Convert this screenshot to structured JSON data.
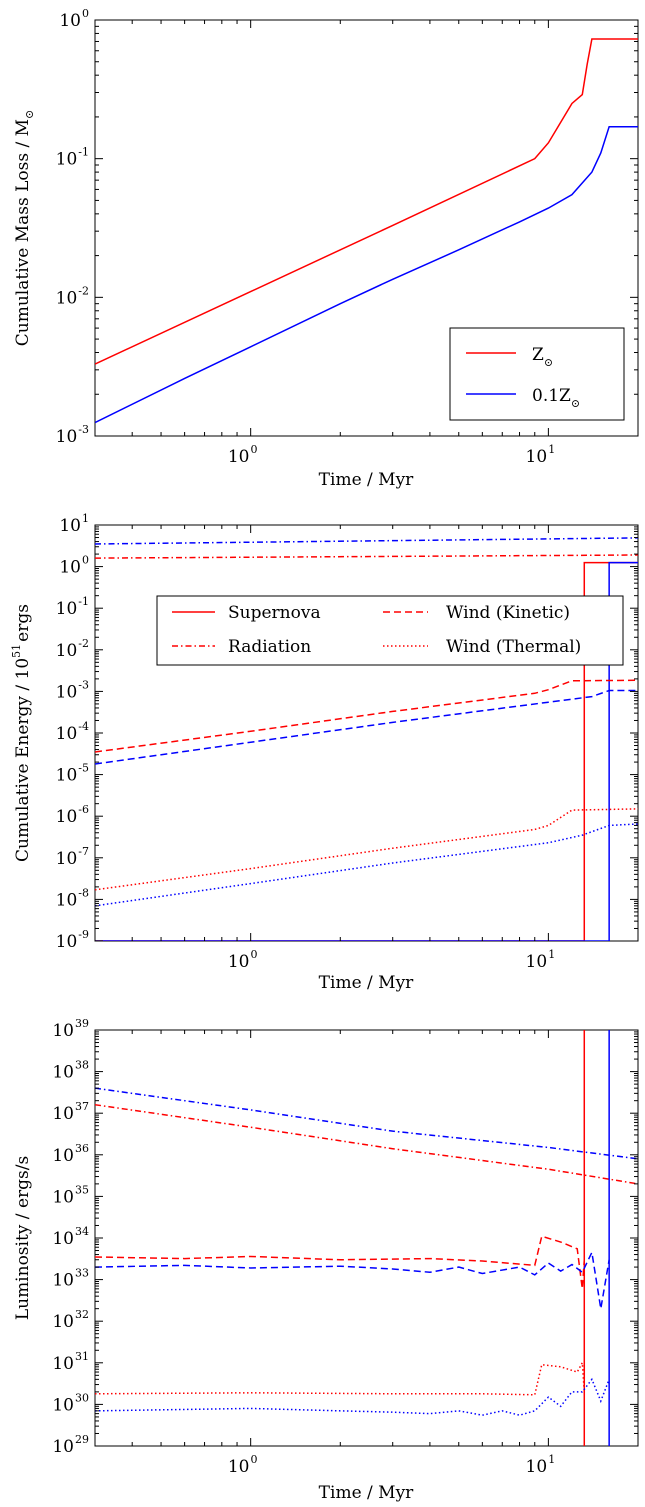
{
  "chart_data": [
    {
      "type": "line",
      "xlabel": "Time / Myr",
      "ylabel_text": "Cumulative Mass Loss / M",
      "ylabel_symbol": "⊙",
      "xscale": "log",
      "yscale": "log",
      "xlim": [
        0.3,
        20
      ],
      "ylim": [
        0.001,
        1
      ],
      "xticks": [
        {
          "base": "10",
          "exp": "0",
          "value": 1
        },
        {
          "base": "10",
          "exp": "1",
          "value": 10
        }
      ],
      "yticks": [
        {
          "base": "10",
          "exp": "-3",
          "value": 0.001
        },
        {
          "base": "10",
          "exp": "-2",
          "value": 0.01
        },
        {
          "base": "10",
          "exp": "-1",
          "value": 0.1
        },
        {
          "base": "10",
          "exp": "0",
          "value": 1
        }
      ],
      "legend": {
        "placement": "lower-right"
      },
      "series": [
        {
          "name": "Z",
          "name_sub": "⊙",
          "color": "#ff0000",
          "style": "solid",
          "points": [
            [
              0.3,
              0.0033
            ],
            [
              1,
              0.011
            ],
            [
              3,
              0.033
            ],
            [
              9,
              0.1
            ],
            [
              10,
              0.13
            ],
            [
              12,
              0.25
            ],
            [
              13,
              0.29
            ],
            [
              13.5,
              0.48
            ],
            [
              14,
              0.73
            ],
            [
              20,
              0.73
            ]
          ]
        },
        {
          "name": "0.1Z",
          "name_sub": "⊙",
          "color": "#0000ff",
          "style": "solid",
          "points": [
            [
              0.3,
              0.00125
            ],
            [
              0.6,
              0.0026
            ],
            [
              1,
              0.0044
            ],
            [
              2,
              0.009
            ],
            [
              3,
              0.0135
            ],
            [
              5,
              0.022
            ],
            [
              8,
              0.035
            ],
            [
              10,
              0.044
            ],
            [
              12,
              0.055
            ],
            [
              14,
              0.08
            ],
            [
              15,
              0.11
            ],
            [
              16,
              0.17
            ],
            [
              20,
              0.17
            ]
          ]
        }
      ]
    },
    {
      "type": "line",
      "xlabel": "Time / Myr",
      "ylabel_text": "Cumulative Energy / 10",
      "ylabel_exp": "51",
      "ylabel_unit": "ergs",
      "xscale": "log",
      "yscale": "log",
      "xlim": [
        0.3,
        20
      ],
      "ylim": [
        1e-09,
        10
      ],
      "xticks": [
        {
          "base": "10",
          "exp": "0",
          "value": 1
        },
        {
          "base": "10",
          "exp": "1",
          "value": 10
        }
      ],
      "yticks": [
        {
          "base": "10",
          "exp": "-9",
          "value": 1e-09
        },
        {
          "base": "10",
          "exp": "-8",
          "value": 1e-08
        },
        {
          "base": "10",
          "exp": "-7",
          "value": 1e-07
        },
        {
          "base": "10",
          "exp": "-6",
          "value": 1e-06
        },
        {
          "base": "10",
          "exp": "-5",
          "value": 1e-05
        },
        {
          "base": "10",
          "exp": "-4",
          "value": 0.0001
        },
        {
          "base": "10",
          "exp": "-3",
          "value": 0.001
        },
        {
          "base": "10",
          "exp": "-2",
          "value": 0.01
        },
        {
          "base": "10",
          "exp": "-1",
          "value": 0.1
        },
        {
          "base": "10",
          "exp": "0",
          "value": 1
        },
        {
          "base": "10",
          "exp": "1",
          "value": 10
        }
      ],
      "legend": {
        "placement": "upper-right",
        "entries": [
          {
            "label": "Supernova",
            "style": "solid"
          },
          {
            "label": "Wind (Kinetic)",
            "style": "dashed"
          },
          {
            "label": "Radiation",
            "style": "dashdot"
          },
          {
            "label": "Wind (Thermal)",
            "style": "dotted"
          }
        ]
      },
      "series": [
        {
          "color": "#ff0000",
          "style": "solid",
          "points": [
            [
              0.3,
              1e-09
            ],
            [
              13.2,
              1e-09
            ],
            [
              13.2,
              1.25
            ],
            [
              20,
              1.25
            ]
          ]
        },
        {
          "color": "#0000ff",
          "style": "solid",
          "points": [
            [
              0.3,
              1e-09
            ],
            [
              16,
              1e-09
            ],
            [
              16,
              1.25
            ],
            [
              20,
              1.25
            ]
          ]
        },
        {
          "color": "#0000ff",
          "style": "dashdot",
          "points": [
            [
              0.3,
              3.5
            ],
            [
              20,
              4.9
            ]
          ]
        },
        {
          "color": "#ff0000",
          "style": "dashdot",
          "points": [
            [
              0.3,
              1.6
            ],
            [
              20,
              1.9
            ]
          ]
        },
        {
          "color": "#ff0000",
          "style": "dashed",
          "points": [
            [
              0.3,
              3.5e-05
            ],
            [
              1,
              0.00011
            ],
            [
              3,
              0.00033
            ],
            [
              9,
              0.0009
            ],
            [
              10,
              0.0011
            ],
            [
              12,
              0.0018
            ],
            [
              20,
              0.00185
            ]
          ]
        },
        {
          "color": "#0000ff",
          "style": "dashed",
          "points": [
            [
              0.3,
              1.8e-05
            ],
            [
              1,
              6e-05
            ],
            [
              3,
              0.00018
            ],
            [
              10,
              0.00055
            ],
            [
              14,
              0.00075
            ],
            [
              16,
              0.00105
            ],
            [
              20,
              0.00105
            ]
          ]
        },
        {
          "color": "#ff0000",
          "style": "dotted",
          "points": [
            [
              0.3,
              1.7e-08
            ],
            [
              1,
              5.5e-08
            ],
            [
              3,
              1.7e-07
            ],
            [
              9,
              4.8e-07
            ],
            [
              10,
              6e-07
            ],
            [
              12,
              1.4e-06
            ],
            [
              20,
              1.5e-06
            ]
          ]
        },
        {
          "color": "#0000ff",
          "style": "dotted",
          "points": [
            [
              0.3,
              7e-09
            ],
            [
              1,
              2.4e-08
            ],
            [
              3,
              7.5e-08
            ],
            [
              10,
              2.3e-07
            ],
            [
              13,
              3.5e-07
            ],
            [
              16,
              6e-07
            ],
            [
              20,
              6.5e-07
            ]
          ]
        }
      ]
    },
    {
      "type": "line",
      "xlabel": "Time / Myr",
      "ylabel_text": "Luminosity / ergs/s",
      "xscale": "log",
      "yscale": "log",
      "xlim": [
        0.3,
        20
      ],
      "ylim": [
        1e+29,
        1e+39
      ],
      "xticks": [
        {
          "base": "10",
          "exp": "0",
          "value": 1
        },
        {
          "base": "10",
          "exp": "1",
          "value": 10
        }
      ],
      "yticks": [
        {
          "base": "10",
          "exp": "29",
          "value": 1e+29
        },
        {
          "base": "10",
          "exp": "30",
          "value": 1e+30
        },
        {
          "base": "10",
          "exp": "31",
          "value": 1e+31
        },
        {
          "base": "10",
          "exp": "32",
          "value": 1e+32
        },
        {
          "base": "10",
          "exp": "33",
          "value": 1e+33
        },
        {
          "base": "10",
          "exp": "34",
          "value": 1e+34
        },
        {
          "base": "10",
          "exp": "35",
          "value": 1e+35
        },
        {
          "base": "10",
          "exp": "36",
          "value": 1e+36
        },
        {
          "base": "10",
          "exp": "37",
          "value": 1e+37
        },
        {
          "base": "10",
          "exp": "38",
          "value": 1e+38
        },
        {
          "base": "10",
          "exp": "39",
          "value": 1e+39
        }
      ],
      "series": [
        {
          "color": "#ff0000",
          "style": "solid",
          "points": [
            [
              13.2,
              1e+29
            ],
            [
              13.2,
              1e+39
            ]
          ]
        },
        {
          "color": "#0000ff",
          "style": "solid",
          "points": [
            [
              16,
              1e+29
            ],
            [
              16,
              1e+39
            ]
          ]
        },
        {
          "color": "#0000ff",
          "style": "dashdot",
          "points": [
            [
              0.3,
              4e+37
            ],
            [
              1,
              1.2e+37
            ],
            [
              3,
              3.7e+36
            ],
            [
              10,
              1.5e+36
            ],
            [
              20,
              8e+35
            ]
          ]
        },
        {
          "color": "#ff0000",
          "style": "dashdot",
          "points": [
            [
              0.3,
              1.6e+37
            ],
            [
              1,
              4.6e+36
            ],
            [
              3,
              1.4e+36
            ],
            [
              10,
              4.5e+35
            ],
            [
              20,
              2e+35
            ]
          ]
        },
        {
          "color": "#ff0000",
          "style": "dashed",
          "points": [
            [
              0.3,
              3.5e+33
            ],
            [
              0.6,
              3.2e+33
            ],
            [
              1,
              3.6e+33
            ],
            [
              2,
              3e+33
            ],
            [
              4,
              3.2e+33
            ],
            [
              6,
              2.8e+33
            ],
            [
              9,
              2.2e+33
            ],
            [
              9.5,
              1.1e+34
            ],
            [
              11,
              8e+33
            ],
            [
              12.5,
              5.5e+33
            ],
            [
              13,
              6e+32
            ],
            [
              13.2,
              3e+33
            ]
          ]
        },
        {
          "color": "#0000ff",
          "style": "dashed",
          "points": [
            [
              0.3,
              2e+33
            ],
            [
              0.6,
              2.2e+33
            ],
            [
              1,
              1.9e+33
            ],
            [
              2,
              2.1e+33
            ],
            [
              3,
              1.8e+33
            ],
            [
              4,
              1.5e+33
            ],
            [
              5,
              2e+33
            ],
            [
              6,
              1.4e+33
            ],
            [
              8,
              2e+33
            ],
            [
              9,
              1.3e+33
            ],
            [
              10,
              2.5e+33
            ],
            [
              11,
              1.6e+33
            ],
            [
              12,
              2.3e+33
            ],
            [
              13,
              1.5e+33
            ],
            [
              14,
              4.5e+33
            ],
            [
              15,
              2e+32
            ],
            [
              16,
              3e+33
            ]
          ]
        },
        {
          "color": "#ff0000",
          "style": "dotted",
          "points": [
            [
              0.3,
              1.8e+30
            ],
            [
              1,
              1.9e+30
            ],
            [
              3,
              1.8e+30
            ],
            [
              6,
              1.8e+30
            ],
            [
              9,
              1.7e+30
            ],
            [
              9.5,
              9e+30
            ],
            [
              11,
              8e+30
            ],
            [
              12.5,
              6e+30
            ],
            [
              13,
              1e+31
            ],
            [
              13.2,
              2e+30
            ]
          ]
        },
        {
          "color": "#0000ff",
          "style": "dotted",
          "points": [
            [
              0.3,
              7e+29
            ],
            [
              1,
              8e+29
            ],
            [
              2,
              7e+29
            ],
            [
              3,
              6.5e+29
            ],
            [
              4,
              6e+29
            ],
            [
              5,
              7e+29
            ],
            [
              6,
              5.5e+29
            ],
            [
              7,
              7e+29
            ],
            [
              8,
              5.5e+29
            ],
            [
              9,
              7e+29
            ],
            [
              10,
              1.5e+30
            ],
            [
              11,
              9e+29
            ],
            [
              12,
              2e+30
            ],
            [
              13,
              2e+30
            ],
            [
              14,
              4e+30
            ],
            [
              15,
              1.2e+30
            ],
            [
              16,
              4e+30
            ]
          ]
        }
      ]
    }
  ]
}
